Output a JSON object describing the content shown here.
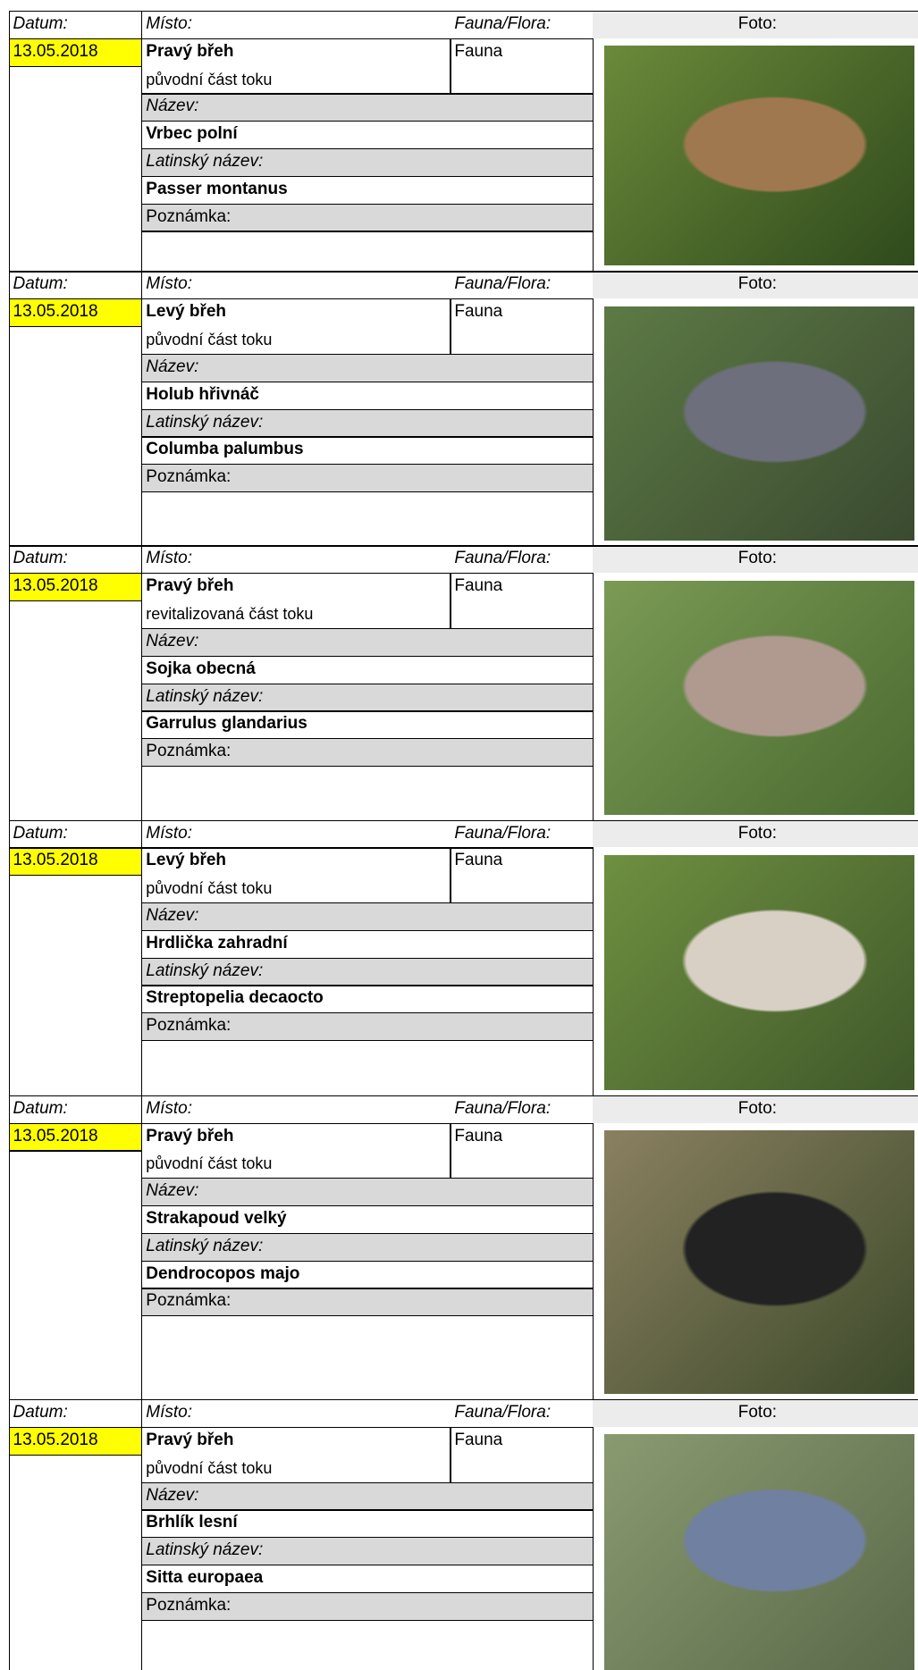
{
  "labels": {
    "date": "Datum:",
    "place": "Místo:",
    "kind": "Fauna/Flora:",
    "photo": "Foto:",
    "name": "Název:",
    "latin": "Latinský název:",
    "note": "Poznámka:"
  },
  "records": [
    {
      "date": "13.05.2018",
      "place": "Pravý břeh",
      "section": "původní část toku",
      "kind": "Fauna",
      "name": "Vrbec polní",
      "latin": "Passer montanus"
    },
    {
      "date": "13.05.2018",
      "place": "Levý břeh",
      "section": "původní část toku",
      "kind": "Fauna",
      "name": "Holub hřivnáč",
      "latin": "Columba palumbus"
    },
    {
      "date": "13.05.2018",
      "place": "Pravý břeh",
      "section": "revitalizovaná část toku",
      "kind": "Fauna",
      "name": "Sojka obecná",
      "latin": "Garrulus glandarius"
    },
    {
      "date": "13.05.2018",
      "place": "Levý břeh",
      "section": "původní část toku",
      "kind": "Fauna",
      "name": "Hrdlička zahradní",
      "latin": "Streptopelia decaocto"
    },
    {
      "date": "13.05.2018",
      "place": "Pravý břeh",
      "section": "původní část toku",
      "kind": "Fauna",
      "name": "Strakapoud velký",
      "latin": "Dendrocopos majo"
    },
    {
      "date": "13.05.2018",
      "place": "Pravý břeh",
      "section": "původní část toku",
      "kind": "Fauna",
      "name": "Brhlík lesní",
      "latin": "Sitta europaea"
    }
  ]
}
